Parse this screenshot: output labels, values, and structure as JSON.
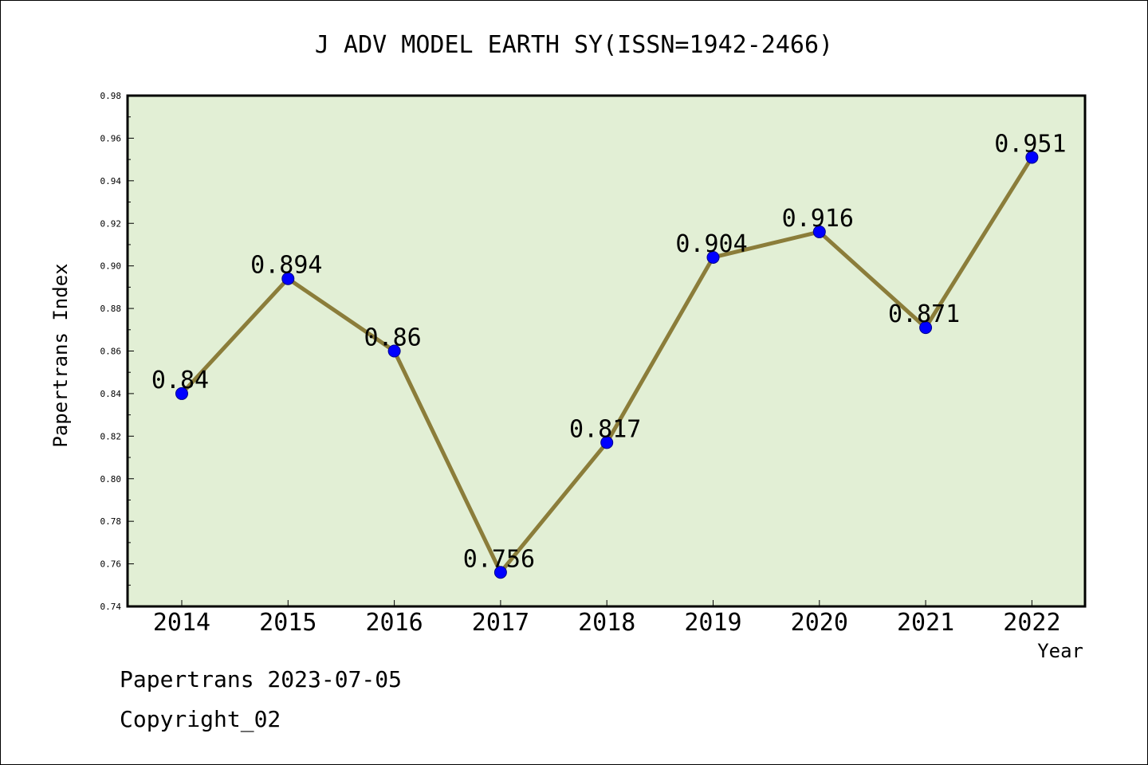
{
  "colors": {
    "plot_background": "#e2efd5",
    "line": "#8b7d3a",
    "marker": "#0000ff",
    "marker_edge": "#00008b",
    "axis": "#000000"
  },
  "footer": {
    "line1": "Papertrans 2023-07-05",
    "line2": "Copyright_02"
  },
  "chart_data": {
    "type": "line",
    "title": "J ADV MODEL EARTH SY(ISSN=1942-2466)",
    "xlabel": "Year",
    "ylabel": "Papertrans Index",
    "x": [
      "2014",
      "2015",
      "2016",
      "2017",
      "2018",
      "2019",
      "2020",
      "2021",
      "2022"
    ],
    "series": [
      {
        "values": [
          0.84,
          0.894,
          0.86,
          0.756,
          0.817,
          0.904,
          0.916,
          0.871,
          0.951
        ],
        "labels": [
          "0.84",
          "0.894",
          "0.86",
          "0.756",
          "0.817",
          "0.904",
          "0.916",
          "0.871",
          "0.951"
        ]
      }
    ],
    "ylim": [
      0.74,
      0.98
    ],
    "yticks": [
      0.74,
      0.76,
      0.78,
      0.8,
      0.82,
      0.84,
      0.86,
      0.88,
      0.9,
      0.92,
      0.94,
      0.96,
      0.98
    ],
    "ytick_labels": [
      "0.74",
      "0.76",
      "0.78",
      "0.80",
      "0.82",
      "0.84",
      "0.86",
      "0.88",
      "0.90",
      "0.92",
      "0.94",
      "0.96",
      "0.98"
    ],
    "grid": false,
    "legend": "none"
  }
}
